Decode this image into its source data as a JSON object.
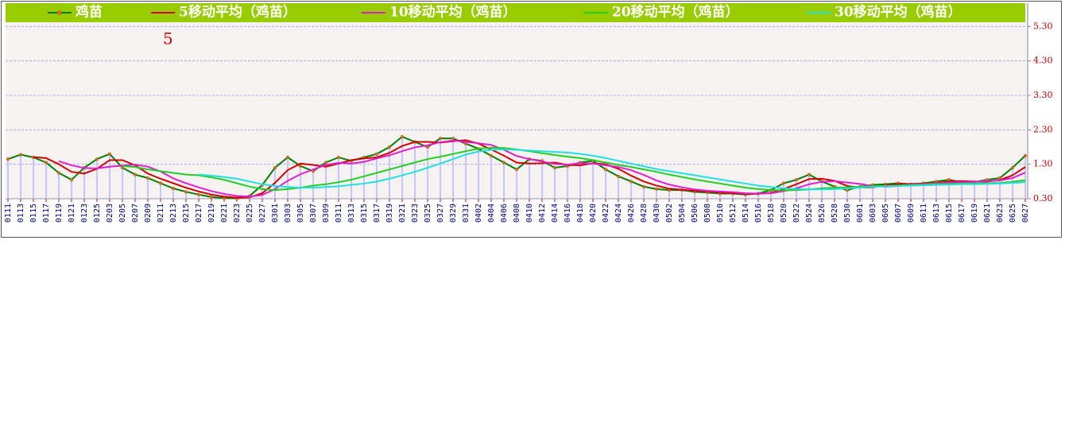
{
  "chart_data": {
    "type": "line",
    "annotation": "5",
    "categories": [
      "0111",
      "0113",
      "0115",
      "0117",
      "0119",
      "0121",
      "0123",
      "0125",
      "0203",
      "0205",
      "0207",
      "0209",
      "0211",
      "0213",
      "0215",
      "0217",
      "0219",
      "0221",
      "0223",
      "0225",
      "0227",
      "0301",
      "0303",
      "0305",
      "0307",
      "0309",
      "0311",
      "0313",
      "0315",
      "0317",
      "0319",
      "0321",
      "0323",
      "0325",
      "0327",
      "0329",
      "0331",
      "0402",
      "0404",
      "0406",
      "0408",
      "0410",
      "0412",
      "0414",
      "0416",
      "0418",
      "0420",
      "0422",
      "0424",
      "0426",
      "0428",
      "0430",
      "0502",
      "0504",
      "0506",
      "0508",
      "0510",
      "0512",
      "0514",
      "0516",
      "0518",
      "0520",
      "0522",
      "0524",
      "0526",
      "0528",
      "0530",
      "0601",
      "0603",
      "0605",
      "0607",
      "0609",
      "0611",
      "0613",
      "0615",
      "0617",
      "0619",
      "0621",
      "0623",
      "0625",
      "0627"
    ],
    "series": [
      {
        "name": "鸡苗",
        "color": "#008000",
        "bars": true,
        "values": [
          1.45,
          1.58,
          1.5,
          1.35,
          1.05,
          0.85,
          1.2,
          1.45,
          1.6,
          1.2,
          1.0,
          0.9,
          0.75,
          0.6,
          0.5,
          0.42,
          0.35,
          0.32,
          0.31,
          0.38,
          0.7,
          1.2,
          1.5,
          1.25,
          1.1,
          1.35,
          1.5,
          1.4,
          1.5,
          1.6,
          1.8,
          2.1,
          1.95,
          1.8,
          2.05,
          2.05,
          1.9,
          1.75,
          1.55,
          1.35,
          1.15,
          1.45,
          1.4,
          1.2,
          1.25,
          1.35,
          1.4,
          1.15,
          0.95,
          0.8,
          0.65,
          0.58,
          0.55,
          0.55,
          0.5,
          0.48,
          0.45,
          0.45,
          0.42,
          0.45,
          0.55,
          0.75,
          0.85,
          1.0,
          0.8,
          0.65,
          0.55,
          0.65,
          0.7,
          0.72,
          0.75,
          0.72,
          0.75,
          0.8,
          0.85,
          0.78,
          0.78,
          0.85,
          0.9,
          1.2,
          1.55
        ]
      },
      {
        "name": "5移动平均（鸡苗）",
        "color": "#d00000",
        "values": [
          null,
          null,
          1.51,
          1.48,
          1.3,
          1.08,
          1.03,
          1.17,
          1.42,
          1.42,
          1.27,
          1.03,
          0.88,
          0.75,
          0.62,
          0.51,
          0.42,
          0.36,
          0.33,
          0.34,
          0.46,
          0.76,
          1.13,
          1.32,
          1.28,
          1.23,
          1.32,
          1.42,
          1.47,
          1.5,
          1.63,
          1.83,
          1.95,
          1.95,
          1.93,
          1.97,
          2.0,
          1.9,
          1.73,
          1.55,
          1.35,
          1.32,
          1.33,
          1.35,
          1.28,
          1.27,
          1.33,
          1.3,
          1.17,
          0.97,
          0.8,
          0.68,
          0.59,
          0.56,
          0.53,
          0.51,
          0.48,
          0.46,
          0.44,
          0.44,
          0.47,
          0.58,
          0.72,
          0.87,
          0.88,
          0.82,
          0.67,
          0.62,
          0.63,
          0.69,
          0.72,
          0.73,
          0.74,
          0.76,
          0.8,
          0.81,
          0.8,
          0.8,
          0.84,
          0.98,
          1.22
        ]
      },
      {
        "name": "10移动平均（鸡苗）",
        "color": "#e020d0",
        "values": [
          null,
          null,
          null,
          null,
          1.39,
          1.27,
          1.19,
          1.18,
          1.23,
          1.26,
          1.29,
          1.23,
          1.09,
          0.89,
          0.75,
          0.63,
          0.52,
          0.44,
          0.38,
          0.36,
          0.41,
          0.58,
          0.82,
          1.01,
          1.15,
          1.28,
          1.34,
          1.32,
          1.37,
          1.47,
          1.56,
          1.68,
          1.79,
          1.85,
          1.94,
          1.99,
          1.95,
          1.91,
          1.86,
          1.72,
          1.54,
          1.45,
          1.38,
          1.31,
          1.29,
          1.33,
          1.32,
          1.27,
          1.22,
          1.13,
          0.99,
          0.83,
          0.71,
          0.63,
          0.57,
          0.53,
          0.51,
          0.49,
          0.46,
          0.45,
          0.46,
          0.52,
          0.6,
          0.72,
          0.79,
          0.81,
          0.77,
          0.73,
          0.67,
          0.65,
          0.67,
          0.71,
          0.73,
          0.75,
          0.77,
          0.78,
          0.79,
          0.81,
          0.83,
          0.9,
          1.06
        ]
      },
      {
        "name": "20移动平均（鸡苗）",
        "color": "#20d020",
        "values": [
          null,
          null,
          null,
          null,
          null,
          null,
          null,
          null,
          null,
          1.25,
          1.22,
          1.15,
          1.1,
          1.05,
          1.0,
          0.98,
          0.92,
          0.85,
          0.75,
          0.65,
          0.58,
          0.55,
          0.58,
          0.62,
          0.68,
          0.72,
          0.78,
          0.85,
          0.95,
          1.05,
          1.15,
          1.25,
          1.35,
          1.45,
          1.52,
          1.6,
          1.68,
          1.75,
          1.78,
          1.77,
          1.73,
          1.68,
          1.62,
          1.57,
          1.52,
          1.48,
          1.42,
          1.35,
          1.28,
          1.22,
          1.15,
          1.08,
          1.0,
          0.93,
          0.86,
          0.8,
          0.74,
          0.68,
          0.62,
          0.58,
          0.55,
          0.54,
          0.55,
          0.57,
          0.6,
          0.62,
          0.63,
          0.65,
          0.66,
          0.67,
          0.68,
          0.7,
          0.71,
          0.72,
          0.73,
          0.74,
          0.74,
          0.75,
          0.76,
          0.79,
          0.84
        ]
      },
      {
        "name": "30移动平均（鸡苗）",
        "color": "#20e0e0",
        "values": [
          null,
          null,
          null,
          null,
          null,
          null,
          null,
          null,
          null,
          null,
          null,
          null,
          null,
          null,
          null,
          1.0,
          0.97,
          0.93,
          0.88,
          0.8,
          0.72,
          0.67,
          0.64,
          0.62,
          0.62,
          0.64,
          0.66,
          0.7,
          0.74,
          0.8,
          0.88,
          0.98,
          1.08,
          1.2,
          1.32,
          1.45,
          1.58,
          1.67,
          1.72,
          1.73,
          1.72,
          1.7,
          1.68,
          1.66,
          1.64,
          1.6,
          1.55,
          1.48,
          1.4,
          1.32,
          1.24,
          1.16,
          1.1,
          1.04,
          0.98,
          0.92,
          0.86,
          0.8,
          0.74,
          0.68,
          0.64,
          0.6,
          0.58,
          0.57,
          0.57,
          0.58,
          0.6,
          0.62,
          0.64,
          0.66,
          0.67,
          0.68,
          0.69,
          0.7,
          0.71,
          0.72,
          0.72,
          0.73,
          0.74,
          0.76,
          0.78
        ]
      }
    ],
    "bar_color": "#c4c4ff",
    "ylim": [
      0.3,
      5.4
    ],
    "yticks": [
      {
        "value": 0.3,
        "label": "0.30"
      },
      {
        "value": 1.3,
        "label": "1.30"
      },
      {
        "value": 2.3,
        "label": "2.30"
      },
      {
        "value": 3.3,
        "label": "3.30"
      },
      {
        "value": 4.3,
        "label": "4.30"
      },
      {
        "value": 5.3,
        "label": "5.30"
      }
    ],
    "grid": true,
    "legend": "top",
    "legend_color": "#99cc00"
  }
}
